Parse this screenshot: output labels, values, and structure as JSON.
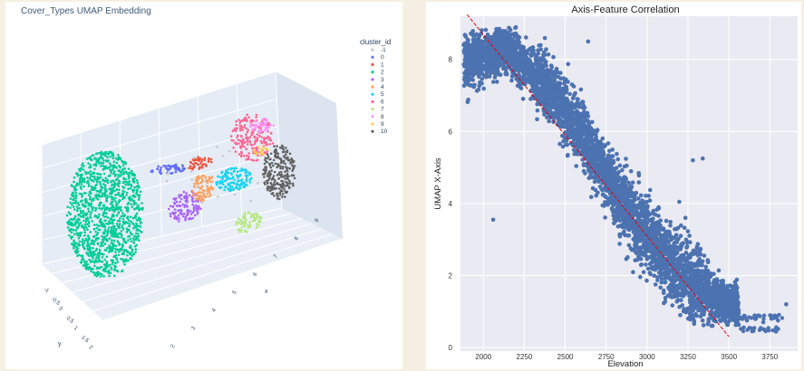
{
  "left_chart": {
    "title": "Cover_Types UMAP Embedding",
    "legend_title": "cluster_id",
    "legend_items": [
      {
        "label": "-1",
        "color": "#c8c8c8"
      },
      {
        "label": "0",
        "color": "#636efa"
      },
      {
        "label": "1",
        "color": "#ef553b"
      },
      {
        "label": "2",
        "color": "#00cc96"
      },
      {
        "label": "3",
        "color": "#ab63fa"
      },
      {
        "label": "4",
        "color": "#ffa15a"
      },
      {
        "label": "5",
        "color": "#19d3f3"
      },
      {
        "label": "6",
        "color": "#ff6692"
      },
      {
        "label": "7",
        "color": "#b6e880"
      },
      {
        "label": "8",
        "color": "#ff97ff"
      },
      {
        "label": "9",
        "color": "#fecb52"
      },
      {
        "label": "10",
        "color": "#636363"
      }
    ],
    "x_axis": {
      "label": "x",
      "ticks": [
        "2",
        "3",
        "4",
        "5",
        "6",
        "7",
        "8",
        "9"
      ]
    },
    "y_axis": {
      "label": "y",
      "ticks": [
        "-1",
        "-0.5",
        "0",
        "0.5",
        "1",
        "1.5",
        "2"
      ]
    }
  },
  "chart_data": {
    "type": "scatter",
    "title": "Axis-Feature Correlation",
    "xlabel": "Elevation",
    "ylabel": "UMAP X-Axis",
    "xlim": [
      1860,
      3920
    ],
    "ylim": [
      -0.1,
      9.2
    ],
    "xticks": [
      2000,
      2250,
      2500,
      2750,
      3000,
      3250,
      3500,
      3750
    ],
    "yticks": [
      0,
      2,
      4,
      6,
      8
    ],
    "grid": true,
    "point_color": "#4c72b0",
    "trend_color": "#e8000b",
    "trend_line": {
      "x": [
        1900,
        3500
      ],
      "y": [
        9.25,
        0.3
      ]
    },
    "band_centerline": {
      "x": [
        1850,
        2150,
        2400,
        2650,
        2850,
        3050,
        3250,
        3500
      ],
      "y": [
        7.9,
        8.3,
        7.2,
        5.6,
        4.0,
        2.8,
        1.9,
        1.15
      ]
    },
    "outlier_points": {
      "x": [
        2060,
        2640,
        3280,
        3340,
        3560,
        3610,
        3660,
        3710,
        3760,
        3800,
        3850
      ],
      "y": [
        3.55,
        8.5,
        5.2,
        5.25,
        0.95,
        0.75,
        0.8,
        0.7,
        0.8,
        0.75,
        1.2
      ]
    }
  }
}
